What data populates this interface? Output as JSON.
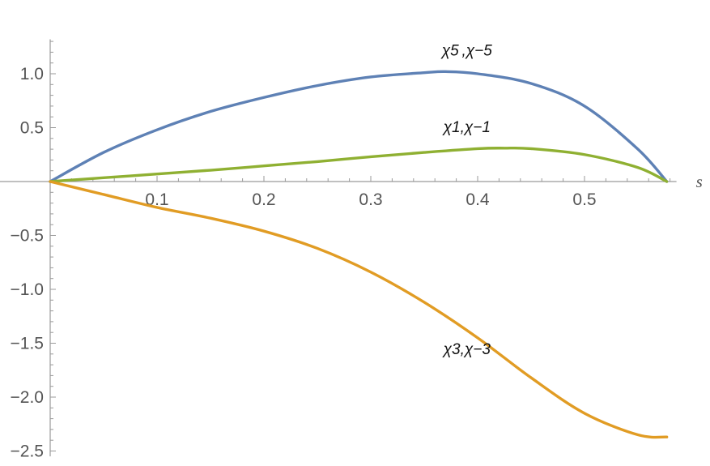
{
  "chart_data": {
    "type": "line",
    "title": "",
    "xlabel": "s",
    "ylabel": "",
    "xlim": [
      0,
      0.58
    ],
    "ylim": [
      -2.55,
      1.32
    ],
    "grid": false,
    "legend": "none",
    "x_ticks": [
      0.1,
      0.2,
      0.3,
      0.4,
      0.5
    ],
    "x_tick_labels": [
      "0.1",
      "0.2",
      "0.3",
      "0.4",
      "0.5"
    ],
    "y_ticks": [
      1.0,
      0.5,
      -0.5,
      -1.0,
      -1.5,
      -2.0,
      -2.5
    ],
    "y_tick_labels": [
      "1.0",
      "0.5",
      "−0.5",
      "−1.0",
      "−1.5",
      "−2.0",
      "−2.5"
    ],
    "series": [
      {
        "name": "χ5,χ−5",
        "color": "#5e81b5",
        "x": [
          0,
          0.05,
          0.1,
          0.15,
          0.2,
          0.25,
          0.3,
          0.35,
          0.37,
          0.4,
          0.45,
          0.5,
          0.55,
          0.577
        ],
        "y": [
          0,
          0.27,
          0.48,
          0.65,
          0.78,
          0.89,
          0.97,
          1.01,
          1.02,
          1.0,
          0.91,
          0.7,
          0.3,
          0.0
        ]
      },
      {
        "name": "χ1,χ−1",
        "color": "#8fb032",
        "x": [
          0,
          0.05,
          0.1,
          0.15,
          0.2,
          0.25,
          0.3,
          0.35,
          0.4,
          0.425,
          0.45,
          0.5,
          0.55,
          0.577
        ],
        "y": [
          0,
          0.035,
          0.07,
          0.105,
          0.145,
          0.185,
          0.23,
          0.27,
          0.305,
          0.31,
          0.305,
          0.25,
          0.13,
          0.0
        ]
      },
      {
        "name": "χ3,χ−3",
        "color": "#e19c24",
        "x": [
          0,
          0.05,
          0.1,
          0.15,
          0.2,
          0.25,
          0.3,
          0.35,
          0.4,
          0.45,
          0.5,
          0.55,
          0.577
        ],
        "y": [
          0,
          -0.12,
          -0.24,
          -0.34,
          -0.46,
          -0.62,
          -0.84,
          -1.12,
          -1.45,
          -1.82,
          -2.15,
          -2.35,
          -2.37
        ]
      }
    ],
    "annotations": [
      {
        "text": "χ5 ,χ−5",
        "x": 0.39,
        "y": 1.17
      },
      {
        "text": "χ1,χ−1",
        "x": 0.39,
        "y": 0.46
      },
      {
        "text": "χ3,χ−3",
        "x": 0.39,
        "y": -1.6
      }
    ]
  }
}
